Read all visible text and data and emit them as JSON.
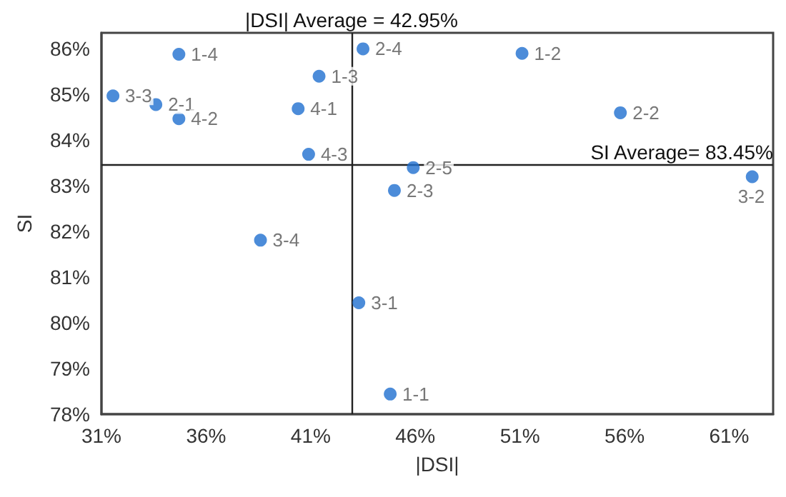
{
  "chart_data": {
    "type": "scatter",
    "xlabel": "|DSI|",
    "ylabel": "SI",
    "x": [
      34.7,
      31.55,
      33.6,
      34.7,
      41.4,
      40.4,
      40.9,
      38.6,
      43.5,
      51.1,
      55.8,
      45.9,
      45.0,
      62.1,
      43.3,
      44.8
    ],
    "series": [
      {
        "color": "#1f6fcf",
        "values": [
          85.88,
          84.97,
          84.78,
          84.47,
          85.4,
          84.69,
          83.69,
          81.81,
          86.0,
          85.9,
          84.6,
          83.4,
          82.9,
          83.2,
          80.44,
          78.44
        ],
        "value_labels": [
          "1-4",
          "3-3",
          "2-1",
          "4-2",
          "1-3",
          "4-1",
          "4-3",
          "3-4",
          "2-4",
          "1-2",
          "2-2",
          "2-5",
          "2-3",
          "3-2",
          "3-1",
          "1-1"
        ]
      }
    ],
    "xlim": [
      31,
      63.1
    ],
    "ylim": [
      78,
      86.35
    ],
    "xticks": [
      {
        "value": 31,
        "label": "31%"
      },
      {
        "value": 36,
        "label": "36%"
      },
      {
        "value": 41,
        "label": "41%"
      },
      {
        "value": 46,
        "label": "46%"
      },
      {
        "value": 51,
        "label": "51%"
      },
      {
        "value": 56,
        "label": "56%"
      },
      {
        "value": 61,
        "label": "61%"
      }
    ],
    "yticks": [
      {
        "value": 78,
        "label": "78%"
      },
      {
        "value": 79,
        "label": "79%"
      },
      {
        "value": 80,
        "label": "80%"
      },
      {
        "value": 81,
        "label": "81%"
      },
      {
        "value": 82,
        "label": "82%"
      },
      {
        "value": 83,
        "label": "83%"
      },
      {
        "value": 84,
        "label": "84%"
      },
      {
        "value": 85,
        "label": "85%"
      },
      {
        "value": 86,
        "label": "86%"
      }
    ],
    "ref_lines": [
      {
        "axis": "x",
        "value": 42.95,
        "label": "|DSI| Average = 42.95%"
      },
      {
        "axis": "y",
        "value": 83.45,
        "label": "SI Average= 83.45%"
      }
    ],
    "grid": false,
    "marker": "circle"
  }
}
